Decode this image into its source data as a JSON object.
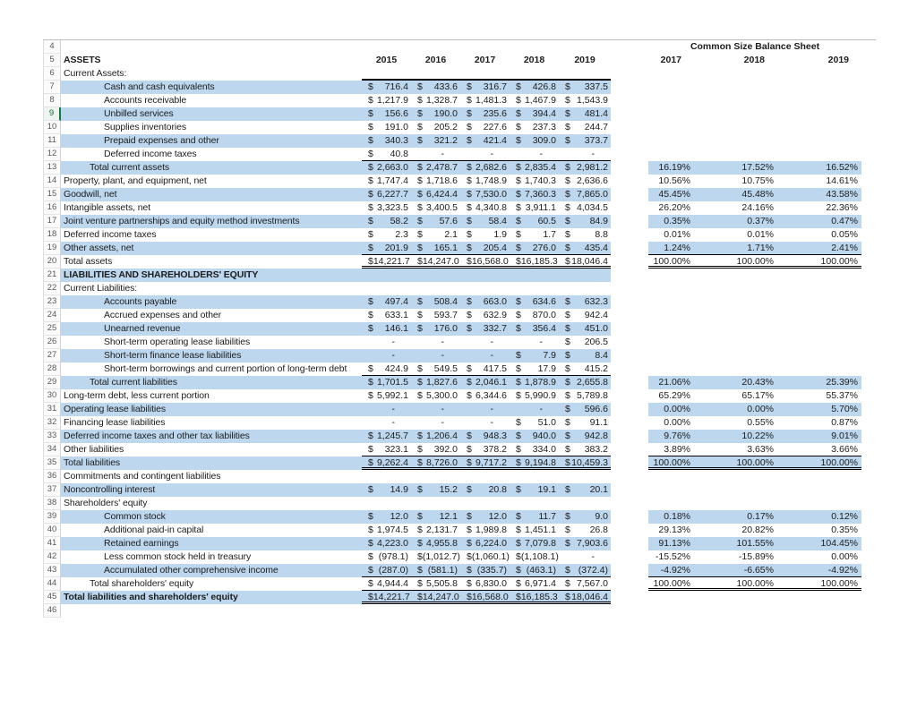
{
  "sheet": {
    "cs_title": "Common Size Balance Sheet",
    "years": [
      "2015",
      "2016",
      "2017",
      "2018",
      "2019"
    ],
    "cs_years": [
      "2017",
      "2018",
      "2019"
    ],
    "colors": {
      "band_blue": "#BDD7EE",
      "selection_green": "#107C41",
      "border_black": "#000000"
    },
    "selected_row": 9,
    "rows": [
      {
        "n": 4,
        "cs_title_row": true
      },
      {
        "n": 5,
        "label": "ASSETS",
        "bold": true,
        "header": true
      },
      {
        "n": 6,
        "label": "Current Assets:",
        "vb": "T"
      },
      {
        "n": 7,
        "label": "Cash and cash equivalents",
        "indent": 2,
        "band": true,
        "vals": [
          [
            "$",
            "716.4"
          ],
          [
            "$",
            "433.6"
          ],
          [
            "$",
            "316.7"
          ],
          [
            "$",
            "426.8"
          ],
          [
            "$",
            "337.5"
          ]
        ]
      },
      {
        "n": 8,
        "label": "Accounts receivable",
        "indent": 2,
        "vals": [
          [
            "$",
            "1,217.9"
          ],
          [
            "$",
            "1,328.7"
          ],
          [
            "$",
            "1,481.3"
          ],
          [
            "$",
            "1,467.9"
          ],
          [
            "$",
            "1,543.9"
          ]
        ]
      },
      {
        "n": 9,
        "label": "Unbilled services",
        "indent": 2,
        "band": true,
        "sel": true,
        "vals": [
          [
            "$",
            "156.6"
          ],
          [
            "$",
            "190.0"
          ],
          [
            "$",
            "235.6"
          ],
          [
            "$",
            "394.4"
          ],
          [
            "$",
            "481.4"
          ]
        ]
      },
      {
        "n": 10,
        "label": "Supplies inventories",
        "indent": 2,
        "vals": [
          [
            "$",
            "191.0"
          ],
          [
            "$",
            "205.2"
          ],
          [
            "$",
            "227.6"
          ],
          [
            "$",
            "237.3"
          ],
          [
            "$",
            "244.7"
          ]
        ]
      },
      {
        "n": 11,
        "label": "Prepaid expenses and other",
        "indent": 2,
        "band": true,
        "vals": [
          [
            "$",
            "340.3"
          ],
          [
            "$",
            "321.2"
          ],
          [
            "$",
            "421.4"
          ],
          [
            "$",
            "309.0"
          ],
          [
            "$",
            "373.7"
          ]
        ]
      },
      {
        "n": 12,
        "label": "Deferred income taxes",
        "indent": 2,
        "vb": "1",
        "vals": [
          [
            "$",
            "40.8"
          ],
          [
            "",
            "-"
          ],
          [
            "",
            "-"
          ],
          [
            "",
            "-"
          ],
          [
            "",
            "-"
          ]
        ]
      },
      {
        "n": 13,
        "label": "Total current assets",
        "indent": 1,
        "band": true,
        "vals": [
          [
            "$",
            "2,663.0"
          ],
          [
            "$",
            "2,478.7"
          ],
          [
            "$",
            "2,682.6"
          ],
          [
            "$",
            "2,835.4"
          ],
          [
            "$",
            "2,981.2"
          ]
        ],
        "cs": [
          "16.19%",
          "17.52%",
          "16.52%"
        ]
      },
      {
        "n": 14,
        "label": "Property, plant, and equipment, net",
        "vals": [
          [
            "$",
            "1,747.4"
          ],
          [
            "$",
            "1,718.6"
          ],
          [
            "$",
            "1,748.9"
          ],
          [
            "$",
            "1,740.3"
          ],
          [
            "$",
            "2,636.6"
          ]
        ],
        "cs": [
          "10.56%",
          "10.75%",
          "14.61%"
        ]
      },
      {
        "n": 15,
        "label": "Goodwill, net",
        "band": true,
        "vals": [
          [
            "$",
            "6,227.7"
          ],
          [
            "$",
            "6,424.4"
          ],
          [
            "$",
            "7,530.0"
          ],
          [
            "$",
            "7,360.3"
          ],
          [
            "$",
            "7,865.0"
          ]
        ],
        "cs": [
          "45.45%",
          "45.48%",
          "43.58%"
        ]
      },
      {
        "n": 16,
        "label": "Intangible assets, net",
        "vals": [
          [
            "$",
            "3,323.5"
          ],
          [
            "$",
            "3,400.5"
          ],
          [
            "$",
            "4,340.8"
          ],
          [
            "$",
            "3,911.1"
          ],
          [
            "$",
            "4,034.5"
          ]
        ],
        "cs": [
          "26.20%",
          "24.16%",
          "22.36%"
        ]
      },
      {
        "n": 17,
        "label": "Joint venture partnerships and equity method investments",
        "band": true,
        "vals": [
          [
            "$",
            "58.2"
          ],
          [
            "$",
            "57.6"
          ],
          [
            "$",
            "58.4"
          ],
          [
            "$",
            "60.5"
          ],
          [
            "$",
            "84.9"
          ]
        ],
        "cs": [
          "0.35%",
          "0.37%",
          "0.47%"
        ]
      },
      {
        "n": 18,
        "label": "Deferred income taxes",
        "vals": [
          [
            "$",
            "2.3"
          ],
          [
            "$",
            "2.1"
          ],
          [
            "$",
            "1.9"
          ],
          [
            "$",
            "1.7"
          ],
          [
            "$",
            "8.8"
          ]
        ],
        "cs": [
          "0.01%",
          "0.01%",
          "0.05%"
        ]
      },
      {
        "n": 19,
        "label": "Other assets, net",
        "band": true,
        "vb": "1",
        "cb": "1",
        "vals": [
          [
            "$",
            "201.9"
          ],
          [
            "$",
            "165.1"
          ],
          [
            "$",
            "205.4"
          ],
          [
            "$",
            "276.0"
          ],
          [
            "$",
            "435.4"
          ]
        ],
        "cs": [
          "1.24%",
          "1.71%",
          "2.41%"
        ]
      },
      {
        "n": 20,
        "label": "Total assets",
        "vb": "2",
        "cb": "2",
        "vals": [
          [
            "$",
            "14,221.7"
          ],
          [
            "$",
            "14,247.0"
          ],
          [
            "$",
            "16,568.0"
          ],
          [
            "$",
            "16,185.3"
          ],
          [
            "$",
            "18,046.4"
          ]
        ],
        "cs": [
          "100.00%",
          "100.00%",
          "100.00%"
        ]
      },
      {
        "n": 21,
        "label": "LIABILITIES AND SHAREHOLDERS' EQUITY",
        "bold": true,
        "band": true
      },
      {
        "n": 22,
        "label": "Current Liabilities:"
      },
      {
        "n": 23,
        "label": "Accounts payable",
        "indent": 2,
        "band": true,
        "vals": [
          [
            "$",
            "497.4"
          ],
          [
            "$",
            "508.4"
          ],
          [
            "$",
            "663.0"
          ],
          [
            "$",
            "634.6"
          ],
          [
            "$",
            "632.3"
          ]
        ]
      },
      {
        "n": 24,
        "label": "Accrued expenses and other",
        "indent": 2,
        "vals": [
          [
            "$",
            "633.1"
          ],
          [
            "$",
            "593.7"
          ],
          [
            "$",
            "632.9"
          ],
          [
            "$",
            "870.0"
          ],
          [
            "$",
            "942.4"
          ]
        ]
      },
      {
        "n": 25,
        "label": "Unearned revenue",
        "indent": 2,
        "band": true,
        "vals": [
          [
            "$",
            "146.1"
          ],
          [
            "$",
            "176.0"
          ],
          [
            "$",
            "332.7"
          ],
          [
            "$",
            "356.4"
          ],
          [
            "$",
            "451.0"
          ]
        ]
      },
      {
        "n": 26,
        "label": "Short-term operating lease liabilities",
        "indent": 2,
        "vals": [
          [
            "",
            "-"
          ],
          [
            "",
            "-"
          ],
          [
            "",
            "-"
          ],
          [
            "",
            "-"
          ],
          [
            "$",
            "206.5"
          ]
        ]
      },
      {
        "n": 27,
        "label": "Short-term finance lease liabilities",
        "indent": 2,
        "band": true,
        "vals": [
          [
            "",
            "-"
          ],
          [
            "",
            "-"
          ],
          [
            "",
            "-"
          ],
          [
            "$",
            "7.9"
          ],
          [
            "$",
            "8.4"
          ]
        ]
      },
      {
        "n": 28,
        "label": "Short-term borrowings and current portion of long-term debt",
        "indent": 2,
        "vb": "1",
        "vals": [
          [
            "$",
            "424.9"
          ],
          [
            "$",
            "549.5"
          ],
          [
            "$",
            "417.5"
          ],
          [
            "$",
            "17.9"
          ],
          [
            "$",
            "415.2"
          ]
        ]
      },
      {
        "n": 29,
        "label": "Total current liabilities",
        "indent": 1,
        "band": true,
        "vals": [
          [
            "$",
            "1,701.5"
          ],
          [
            "$",
            "1,827.6"
          ],
          [
            "$",
            "2,046.1"
          ],
          [
            "$",
            "1,878.9"
          ],
          [
            "$",
            "2,655.8"
          ]
        ],
        "cs": [
          "21.06%",
          "20.43%",
          "25.39%"
        ]
      },
      {
        "n": 30,
        "label": "Long-term debt, less current portion",
        "vals": [
          [
            "$",
            "5,992.1"
          ],
          [
            "$",
            "5,300.0"
          ],
          [
            "$",
            "6,344.6"
          ],
          [
            "$",
            "5,990.9"
          ],
          [
            "$",
            "5,789.8"
          ]
        ],
        "cs": [
          "65.29%",
          "65.17%",
          "55.37%"
        ]
      },
      {
        "n": 31,
        "label": "Operating lease liabilities",
        "band": true,
        "vals": [
          [
            "",
            "-"
          ],
          [
            "",
            "-"
          ],
          [
            "",
            "-"
          ],
          [
            "",
            "-"
          ],
          [
            "$",
            "596.6"
          ]
        ],
        "cs": [
          "0.00%",
          "0.00%",
          "5.70%"
        ]
      },
      {
        "n": 32,
        "label": "Financing lease liabilities",
        "vals": [
          [
            "",
            "-"
          ],
          [
            "",
            "-"
          ],
          [
            "",
            "-"
          ],
          [
            "$",
            "51.0"
          ],
          [
            "$",
            "91.1"
          ]
        ],
        "cs": [
          "0.00%",
          "0.55%",
          "0.87%"
        ]
      },
      {
        "n": 33,
        "label": "Deferred income taxes and other tax liabilities",
        "band": true,
        "vals": [
          [
            "$",
            "1,245.7"
          ],
          [
            "$",
            "1,206.4"
          ],
          [
            "$",
            "948.3"
          ],
          [
            "$",
            "940.0"
          ],
          [
            "$",
            "942.8"
          ]
        ],
        "cs": [
          "9.76%",
          "10.22%",
          "9.01%"
        ]
      },
      {
        "n": 34,
        "label": "Other liabilities",
        "vb": "1",
        "cb": "1",
        "vals": [
          [
            "$",
            "323.1"
          ],
          [
            "$",
            "392.0"
          ],
          [
            "$",
            "378.2"
          ],
          [
            "$",
            "334.0"
          ],
          [
            "$",
            "383.2"
          ]
        ],
        "cs": [
          "3.89%",
          "3.63%",
          "3.66%"
        ]
      },
      {
        "n": 35,
        "label": "Total liabilities",
        "band": true,
        "vb": "2",
        "cb": "2",
        "vals": [
          [
            "$",
            "9,262.4"
          ],
          [
            "$",
            "8,726.0"
          ],
          [
            "$",
            "9,717.2"
          ],
          [
            "$",
            "9,194.8"
          ],
          [
            "$",
            "10,459.3"
          ]
        ],
        "cs": [
          "100.00%",
          "100.00%",
          "100.00%"
        ]
      },
      {
        "n": 36,
        "label": "Commitments and contingent liabilities"
      },
      {
        "n": 37,
        "label": "Noncontrolling interest",
        "band": true,
        "vals": [
          [
            "$",
            "14.9"
          ],
          [
            "$",
            "15.2"
          ],
          [
            "$",
            "20.8"
          ],
          [
            "$",
            "19.1"
          ],
          [
            "$",
            "20.1"
          ]
        ]
      },
      {
        "n": 38,
        "label": "Shareholders' equity"
      },
      {
        "n": 39,
        "label": "Common stock",
        "indent": 2,
        "band": true,
        "vals": [
          [
            "$",
            "12.0"
          ],
          [
            "$",
            "12.1"
          ],
          [
            "$",
            "12.0"
          ],
          [
            "$",
            "11.7"
          ],
          [
            "$",
            "9.0"
          ]
        ],
        "cs": [
          "0.18%",
          "0.17%",
          "0.12%"
        ]
      },
      {
        "n": 40,
        "label": "Additional paid-in capital",
        "indent": 2,
        "vals": [
          [
            "$",
            "1,974.5"
          ],
          [
            "$",
            "2,131.7"
          ],
          [
            "$",
            "1,989.8"
          ],
          [
            "$",
            "1,451.1"
          ],
          [
            "$",
            "26.8"
          ]
        ],
        "cs": [
          "29.13%",
          "20.82%",
          "0.35%"
        ]
      },
      {
        "n": 41,
        "label": "Retained earnings",
        "indent": 2,
        "band": true,
        "vals": [
          [
            "$",
            "4,223.0"
          ],
          [
            "$",
            "4,955.8"
          ],
          [
            "$",
            "6,224.0"
          ],
          [
            "$",
            "7,079.8"
          ],
          [
            "$",
            "7,903.6"
          ]
        ],
        "cs": [
          "91.13%",
          "101.55%",
          "104.45%"
        ]
      },
      {
        "n": 42,
        "label": "Less common stock held in treasury",
        "indent": 2,
        "vals": [
          [
            "$",
            "(978.1)"
          ],
          [
            "$",
            "(1,012.7)"
          ],
          [
            "$",
            "(1,060.1)"
          ],
          [
            "$",
            "(1,108.1)"
          ],
          [
            "",
            "-"
          ]
        ],
        "cs": [
          "-15.52%",
          "-15.89%",
          "0.00%"
        ]
      },
      {
        "n": 43,
        "label": "Accumulated other comprehensive income",
        "indent": 2,
        "band": true,
        "vb": "1",
        "cb": "1",
        "vals": [
          [
            "$",
            "(287.0)"
          ],
          [
            "$",
            "(581.1)"
          ],
          [
            "$",
            "(335.7)"
          ],
          [
            "$",
            "(463.1)"
          ],
          [
            "$",
            "(372.4)"
          ]
        ],
        "cs": [
          "-4.92%",
          "-6.65%",
          "-4.92%"
        ]
      },
      {
        "n": 44,
        "label": "Total shareholders' equity",
        "indent": 1,
        "vb": "1",
        "cb": "2",
        "vals": [
          [
            "$",
            "4,944.4"
          ],
          [
            "$",
            "5,505.8"
          ],
          [
            "$",
            "6,830.0"
          ],
          [
            "$",
            "6,971.4"
          ],
          [
            "$",
            "7,567.0"
          ]
        ],
        "cs": [
          "100.00%",
          "100.00%",
          "100.00%"
        ]
      },
      {
        "n": 45,
        "label": "Total liabilities and shareholders' equity",
        "bold": true,
        "band": true,
        "vb": "2",
        "vals": [
          [
            "$",
            "14,221.7"
          ],
          [
            "$",
            "14,247.0"
          ],
          [
            "$",
            "16,568.0"
          ],
          [
            "$",
            "16,185.3"
          ],
          [
            "$",
            "18,046.4"
          ]
        ]
      },
      {
        "n": 46
      }
    ]
  }
}
